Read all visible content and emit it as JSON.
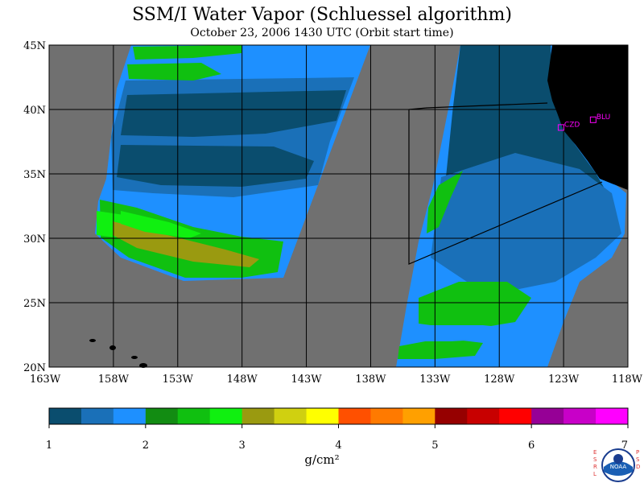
{
  "title": "SSM/I Water Vapor (Schluessel algorithm)",
  "subtitle": "October 23, 2006  1430 UTC  (Orbit start time)",
  "map": {
    "lat_range": [
      20,
      45
    ],
    "lon_range": [
      -163,
      -118
    ],
    "lat_labels": [
      "45N",
      "40N",
      "35N",
      "30N",
      "25N",
      "20N"
    ],
    "lon_labels": [
      "163W",
      "158W",
      "153W",
      "148W",
      "143W",
      "138W",
      "133W",
      "128W",
      "123W",
      "118W"
    ],
    "colors": {
      "no_data": "#707070",
      "land": "#000000",
      "grid": "#000000",
      "station": "#ff00ff"
    },
    "stations": [
      {
        "label": "CZD",
        "lat": 38.6,
        "lon": -123.2
      },
      {
        "label": "BLU",
        "lat": 39.2,
        "lon": -120.7
      }
    ]
  },
  "colorbar": {
    "unit": "g/cm²",
    "tick_labels": [
      "1",
      "2",
      "3",
      "4",
      "5",
      "6",
      "7"
    ],
    "range": [
      1,
      7
    ],
    "colors": [
      "#0a4d6e",
      "#1a70b8",
      "#1e90ff",
      "#128c12",
      "#10c010",
      "#10f010",
      "#9a9a10",
      "#d0d010",
      "#ffff00",
      "#ff5000",
      "#ff7a00",
      "#ffa000",
      "#960000",
      "#c80000",
      "#ff0000",
      "#960096",
      "#c800c8",
      "#ff00ff"
    ]
  },
  "logo": {
    "left_text": "E S R L",
    "right_text": "P S D",
    "badge": "NOAA"
  }
}
